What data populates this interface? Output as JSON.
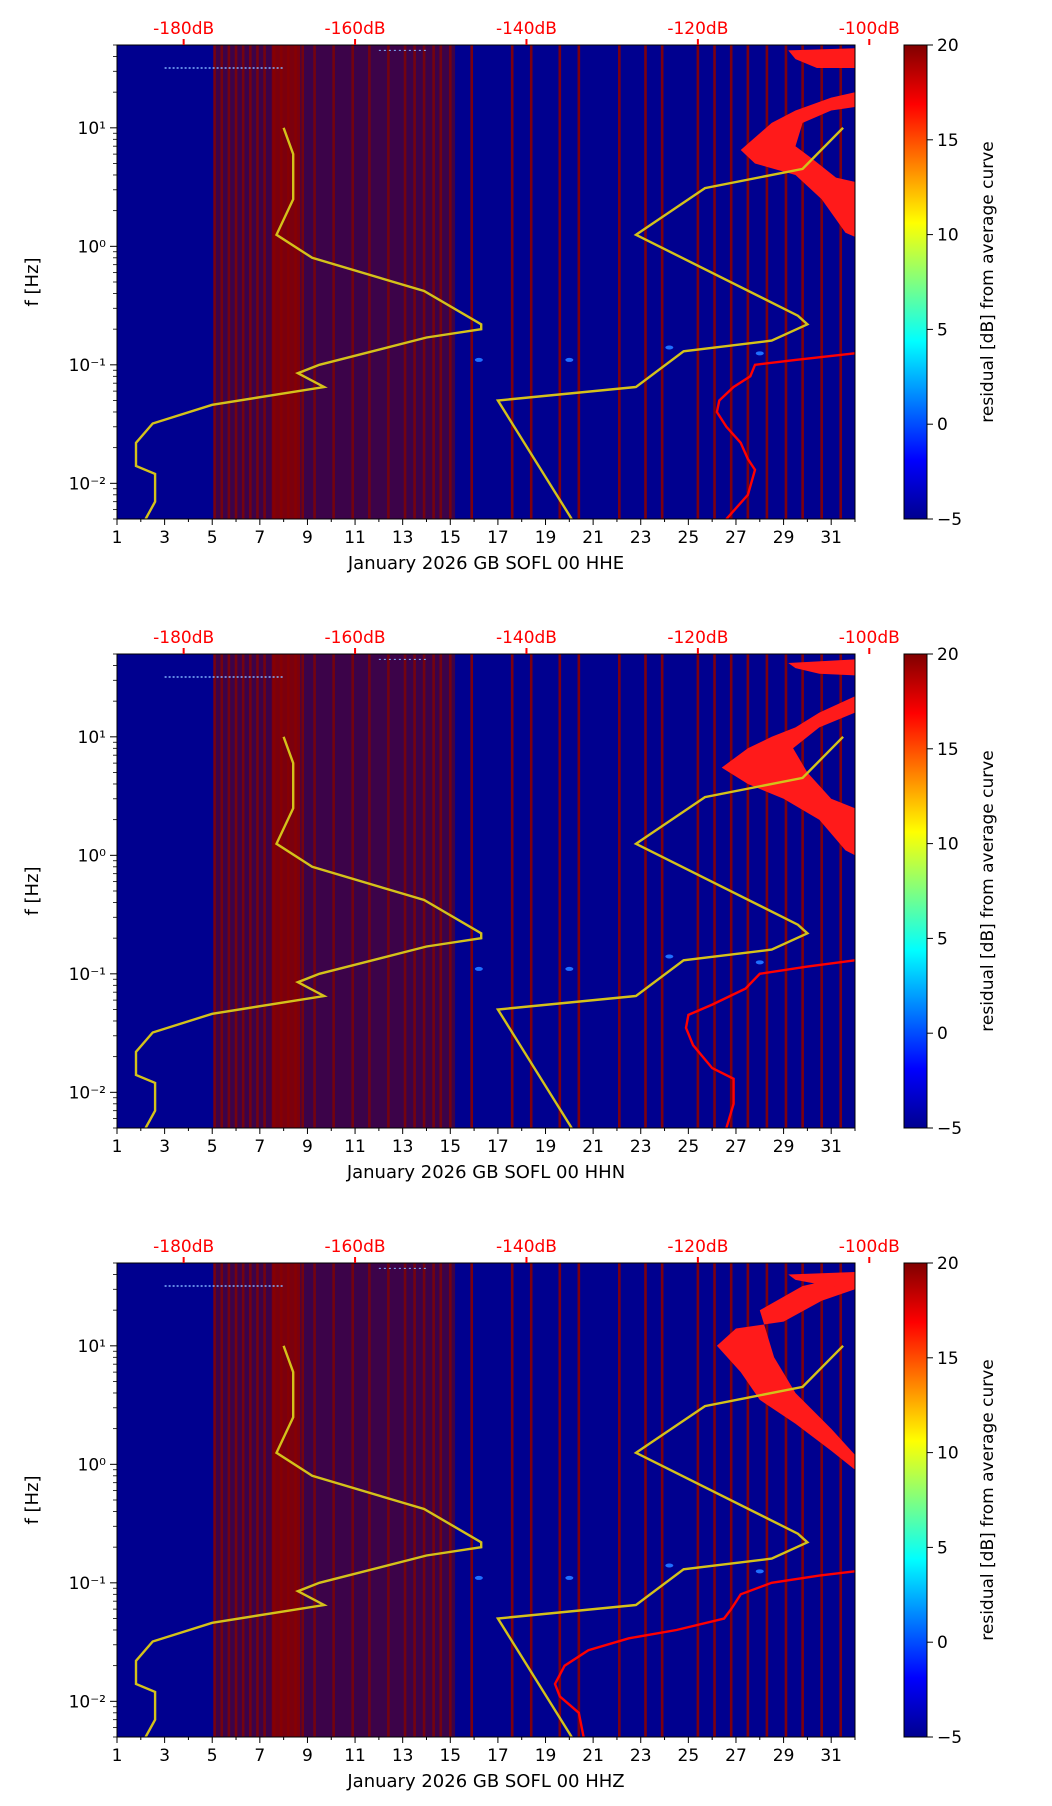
{
  "figure": {
    "panels": [
      {
        "xlabel": "January 2026 GB SOFL 00 HHE",
        "ylabel": "f [Hz]",
        "colorbar_label": "residual [dB] from average curve",
        "top_axis_labels": [
          "-180dB",
          "-160dB",
          "-140dB",
          "-120dB",
          "-100dB"
        ]
      },
      {
        "xlabel": "January 2026 GB SOFL 00 HHN",
        "ylabel": "f [Hz]",
        "colorbar_label": "residual [dB] from average curve",
        "top_axis_labels": [
          "-180dB",
          "-160dB",
          "-140dB",
          "-120dB",
          "-100dB"
        ]
      },
      {
        "xlabel": "January 2026 GB SOFL 00 HHZ",
        "ylabel": "f [Hz]",
        "colorbar_label": "residual [dB] from average curve",
        "top_axis_labels": [
          "-180dB",
          "-160dB",
          "-140dB",
          "-120dB",
          "-100dB"
        ]
      }
    ]
  },
  "chart_data": [
    {
      "type": "heatmap",
      "channel": "HHE",
      "x_ticks": [
        "1",
        "3",
        "5",
        "7",
        "9",
        "11",
        "13",
        "15",
        "17",
        "19",
        "21",
        "23",
        "25",
        "27",
        "29",
        "31"
      ],
      "y_tick_labels": [
        "10⁻²",
        "10⁻¹",
        "10⁰",
        "10¹"
      ],
      "y_scale": "log",
      "xlim": [
        1,
        32
      ],
      "ylim": [
        0.005,
        50
      ],
      "colorbar": {
        "min": -5,
        "max": 20,
        "ticks": [
          "−5",
          "0",
          "5",
          "10",
          "15",
          "20"
        ],
        "colormap": "jet"
      },
      "top_axis": {
        "labels": [
          "-180dB",
          "-160dB",
          "-140dB",
          "-120dB",
          "-100dB"
        ],
        "color": "#ff0000"
      },
      "background_color": "#00008f",
      "gap_columns_day": [
        5.1,
        5.4,
        5.7,
        6.0,
        6.3,
        6.6,
        6.9,
        7.2,
        7.6,
        7.9,
        8.2,
        8.5,
        8.8,
        9.3,
        10.1,
        10.9,
        11.6,
        12.4,
        13.1,
        13.5,
        13.9,
        14.3,
        14.6,
        15.0,
        15.9,
        17.6,
        18.4,
        19.6,
        20.4,
        22.1,
        23.2,
        23.9,
        25.4,
        26.1,
        26.8,
        27.5,
        28.3,
        29.1,
        29.8,
        30.6,
        31.4
      ],
      "reference_curves": [
        {
          "name": "low",
          "color": "#d4c21a",
          "points": [
            [
              8.0,
              10
            ],
            [
              8.4,
              6
            ],
            [
              8.4,
              2.5
            ],
            [
              7.7,
              1.25
            ],
            [
              9.2,
              0.8
            ],
            [
              13.9,
              0.42
            ],
            [
              16.3,
              0.22
            ],
            [
              16.3,
              0.2
            ],
            [
              14.0,
              0.17
            ],
            [
              9.5,
              0.1
            ],
            [
              8.6,
              0.085
            ],
            [
              9.7,
              0.065
            ],
            [
              5.0,
              0.046
            ],
            [
              2.5,
              0.032
            ],
            [
              1.8,
              0.022
            ],
            [
              1.8,
              0.014
            ],
            [
              2.6,
              0.012
            ],
            [
              2.6,
              0.007
            ],
            [
              2.2,
              0.005
            ]
          ]
        },
        {
          "name": "high",
          "color": "#d4c21a",
          "points": [
            [
              31.5,
              10
            ],
            [
              29.8,
              4.5
            ],
            [
              25.7,
              3.1
            ],
            [
              22.8,
              1.25
            ],
            [
              29.6,
              0.26
            ],
            [
              30.0,
              0.22
            ],
            [
              28.5,
              0.16
            ],
            [
              24.8,
              0.13
            ],
            [
              22.8,
              0.065
            ],
            [
              17.0,
              0.05
            ],
            [
              20.1,
              0.005
            ]
          ]
        }
      ],
      "average_curve": {
        "color": "#ff0000",
        "points": [
          [
            26.6,
            0.005
          ],
          [
            27.5,
            0.008
          ],
          [
            27.8,
            0.013
          ],
          [
            27.5,
            0.016
          ],
          [
            27.2,
            0.022
          ],
          [
            26.6,
            0.03
          ],
          [
            26.2,
            0.04
          ],
          [
            26.3,
            0.05
          ],
          [
            26.9,
            0.065
          ],
          [
            27.6,
            0.08
          ],
          [
            27.8,
            0.1
          ],
          [
            29.5,
            0.11
          ],
          [
            32.0,
            0.125
          ]
        ]
      },
      "hot_band": [
        [
          27.2,
          6.5
        ],
        [
          27.8,
          5
        ],
        [
          29.5,
          4
        ],
        [
          30.6,
          2.5
        ],
        [
          31.6,
          1.3
        ],
        [
          32,
          1.2
        ],
        [
          32,
          3.5
        ],
        [
          31.2,
          3.8
        ],
        [
          30.2,
          5.5
        ],
        [
          29.5,
          7
        ],
        [
          29.8,
          11
        ],
        [
          31.0,
          14
        ],
        [
          32.0,
          15
        ],
        [
          32,
          20
        ],
        [
          31.0,
          18
        ],
        [
          29.5,
          14
        ],
        [
          28.5,
          11
        ]
      ],
      "hot_top": [
        [
          29.2,
          45
        ],
        [
          32,
          47
        ],
        [
          32,
          32
        ],
        [
          30.4,
          32
        ],
        [
          29.5,
          38
        ]
      ]
    },
    {
      "type": "heatmap",
      "channel": "HHN",
      "x_ticks": [
        "1",
        "3",
        "5",
        "7",
        "9",
        "11",
        "13",
        "15",
        "17",
        "19",
        "21",
        "23",
        "25",
        "27",
        "29",
        "31"
      ],
      "y_tick_labels": [
        "10⁻²",
        "10⁻¹",
        "10⁰",
        "10¹"
      ],
      "y_scale": "log",
      "xlim": [
        1,
        32
      ],
      "ylim": [
        0.005,
        50
      ],
      "colorbar": {
        "min": -5,
        "max": 20,
        "ticks": [
          "−5",
          "0",
          "5",
          "10",
          "15",
          "20"
        ],
        "colormap": "jet"
      },
      "top_axis": {
        "labels": [
          "-180dB",
          "-160dB",
          "-140dB",
          "-120dB",
          "-100dB"
        ],
        "color": "#ff0000"
      },
      "background_color": "#00008f",
      "gap_columns_day": [
        5.1,
        5.4,
        5.7,
        6.0,
        6.3,
        6.6,
        6.9,
        7.2,
        7.6,
        7.9,
        8.2,
        8.5,
        8.8,
        9.3,
        10.1,
        10.9,
        11.6,
        12.4,
        13.1,
        13.5,
        13.9,
        14.3,
        14.6,
        15.0,
        15.9,
        17.6,
        18.4,
        19.6,
        20.4,
        22.1,
        23.2,
        23.9,
        25.4,
        26.1,
        26.8,
        27.5,
        28.3,
        29.1,
        29.8,
        30.6,
        31.4
      ],
      "reference_curves": [
        {
          "name": "low",
          "color": "#d4c21a",
          "points": [
            [
              8.0,
              10
            ],
            [
              8.4,
              6
            ],
            [
              8.4,
              2.5
            ],
            [
              7.7,
              1.25
            ],
            [
              9.2,
              0.8
            ],
            [
              13.9,
              0.42
            ],
            [
              16.3,
              0.22
            ],
            [
              16.3,
              0.2
            ],
            [
              14.0,
              0.17
            ],
            [
              9.5,
              0.1
            ],
            [
              8.6,
              0.085
            ],
            [
              9.7,
              0.065
            ],
            [
              5.0,
              0.046
            ],
            [
              2.5,
              0.032
            ],
            [
              1.8,
              0.022
            ],
            [
              1.8,
              0.014
            ],
            [
              2.6,
              0.012
            ],
            [
              2.6,
              0.007
            ],
            [
              2.2,
              0.005
            ]
          ]
        },
        {
          "name": "high",
          "color": "#d4c21a",
          "points": [
            [
              31.5,
              10
            ],
            [
              29.8,
              4.5
            ],
            [
              25.7,
              3.1
            ],
            [
              22.8,
              1.25
            ],
            [
              29.6,
              0.26
            ],
            [
              30.0,
              0.22
            ],
            [
              28.5,
              0.16
            ],
            [
              24.8,
              0.13
            ],
            [
              22.8,
              0.065
            ],
            [
              17.0,
              0.05
            ],
            [
              20.1,
              0.005
            ]
          ]
        }
      ],
      "average_curve": {
        "color": "#ff0000",
        "points": [
          [
            26.6,
            0.005
          ],
          [
            26.9,
            0.008
          ],
          [
            26.9,
            0.013
          ],
          [
            26.0,
            0.016
          ],
          [
            25.2,
            0.025
          ],
          [
            24.9,
            0.035
          ],
          [
            25.0,
            0.045
          ],
          [
            26.0,
            0.055
          ],
          [
            27.4,
            0.075
          ],
          [
            28.0,
            0.1
          ],
          [
            30.0,
            0.115
          ],
          [
            32.0,
            0.13
          ]
        ]
      },
      "hot_band": [
        [
          26.4,
          5.5
        ],
        [
          27.5,
          4
        ],
        [
          29.0,
          3
        ],
        [
          30.5,
          2
        ],
        [
          31.6,
          1.1
        ],
        [
          32,
          1.0
        ],
        [
          32,
          2.5
        ],
        [
          31.0,
          3
        ],
        [
          30.0,
          5
        ],
        [
          29.4,
          8
        ],
        [
          30.5,
          12
        ],
        [
          32,
          16
        ],
        [
          32,
          22
        ],
        [
          30.5,
          16
        ],
        [
          29.5,
          12
        ],
        [
          28.5,
          10
        ],
        [
          27.5,
          8
        ]
      ],
      "hot_top": [
        [
          29.2,
          42
        ],
        [
          32,
          45
        ],
        [
          32,
          33
        ],
        [
          30.5,
          34
        ],
        [
          29.5,
          38
        ]
      ]
    },
    {
      "type": "heatmap",
      "channel": "HHZ",
      "x_ticks": [
        "1",
        "3",
        "5",
        "7",
        "9",
        "11",
        "13",
        "15",
        "17",
        "19",
        "21",
        "23",
        "25",
        "27",
        "29",
        "31"
      ],
      "y_tick_labels": [
        "10⁻²",
        "10⁻¹",
        "10⁰",
        "10¹"
      ],
      "y_scale": "log",
      "xlim": [
        1,
        32
      ],
      "ylim": [
        0.005,
        50
      ],
      "colorbar": {
        "min": -5,
        "max": 20,
        "ticks": [
          "−5",
          "0",
          "5",
          "10",
          "15",
          "20"
        ],
        "colormap": "jet"
      },
      "top_axis": {
        "labels": [
          "-180dB",
          "-160dB",
          "-140dB",
          "-120dB",
          "-100dB"
        ],
        "color": "#ff0000"
      },
      "background_color": "#00008f",
      "gap_columns_day": [
        5.1,
        5.4,
        5.7,
        6.0,
        6.3,
        6.6,
        6.9,
        7.2,
        7.6,
        7.9,
        8.2,
        8.5,
        8.8,
        9.3,
        10.1,
        10.9,
        11.6,
        12.4,
        13.1,
        13.5,
        13.9,
        14.3,
        14.6,
        15.0,
        15.9,
        17.6,
        18.4,
        19.6,
        20.4,
        22.1,
        23.2,
        23.9,
        25.4,
        26.1,
        26.8,
        27.5,
        28.3,
        29.1,
        29.8,
        30.6,
        31.4
      ],
      "reference_curves": [
        {
          "name": "low",
          "color": "#d4c21a",
          "points": [
            [
              8.0,
              10
            ],
            [
              8.4,
              6
            ],
            [
              8.4,
              2.5
            ],
            [
              7.7,
              1.25
            ],
            [
              9.2,
              0.8
            ],
            [
              13.9,
              0.42
            ],
            [
              16.3,
              0.22
            ],
            [
              16.3,
              0.2
            ],
            [
              14.0,
              0.17
            ],
            [
              9.5,
              0.1
            ],
            [
              8.6,
              0.085
            ],
            [
              9.7,
              0.065
            ],
            [
              5.0,
              0.046
            ],
            [
              2.5,
              0.032
            ],
            [
              1.8,
              0.022
            ],
            [
              1.8,
              0.014
            ],
            [
              2.6,
              0.012
            ],
            [
              2.6,
              0.007
            ],
            [
              2.2,
              0.005
            ]
          ]
        },
        {
          "name": "high",
          "color": "#d4c21a",
          "points": [
            [
              31.5,
              10
            ],
            [
              29.8,
              4.5
            ],
            [
              25.7,
              3.1
            ],
            [
              22.8,
              1.25
            ],
            [
              29.6,
              0.26
            ],
            [
              30.0,
              0.22
            ],
            [
              28.5,
              0.16
            ],
            [
              24.8,
              0.13
            ],
            [
              22.8,
              0.065
            ],
            [
              17.0,
              0.05
            ],
            [
              20.1,
              0.005
            ]
          ]
        }
      ],
      "average_curve": {
        "color": "#ff0000",
        "points": [
          [
            20.6,
            0.005
          ],
          [
            20.4,
            0.008
          ],
          [
            19.6,
            0.011
          ],
          [
            19.4,
            0.014
          ],
          [
            19.8,
            0.02
          ],
          [
            20.8,
            0.027
          ],
          [
            22.5,
            0.034
          ],
          [
            24.5,
            0.04
          ],
          [
            26.5,
            0.05
          ],
          [
            26.8,
            0.06
          ],
          [
            27.2,
            0.08
          ],
          [
            28.5,
            0.1
          ],
          [
            30.5,
            0.115
          ],
          [
            32.0,
            0.125
          ]
        ]
      },
      "hot_band": [
        [
          26.2,
          10
        ],
        [
          27.0,
          14
        ],
        [
          29.0,
          16
        ],
        [
          30.6,
          24
        ],
        [
          32,
          30
        ],
        [
          32,
          40
        ],
        [
          29.8,
          32
        ],
        [
          28.0,
          20
        ],
        [
          28.6,
          8
        ],
        [
          29.5,
          4
        ],
        [
          31.0,
          2
        ],
        [
          32,
          1.2
        ],
        [
          32,
          0.9
        ],
        [
          31.0,
          1.3
        ],
        [
          29.5,
          2.2
        ],
        [
          28.0,
          3.5
        ],
        [
          27.2,
          6
        ]
      ],
      "hot_top": [
        [
          29.2,
          40
        ],
        [
          32,
          42
        ],
        [
          32,
          30
        ],
        [
          30.5,
          33
        ],
        [
          29.5,
          36
        ]
      ]
    }
  ]
}
